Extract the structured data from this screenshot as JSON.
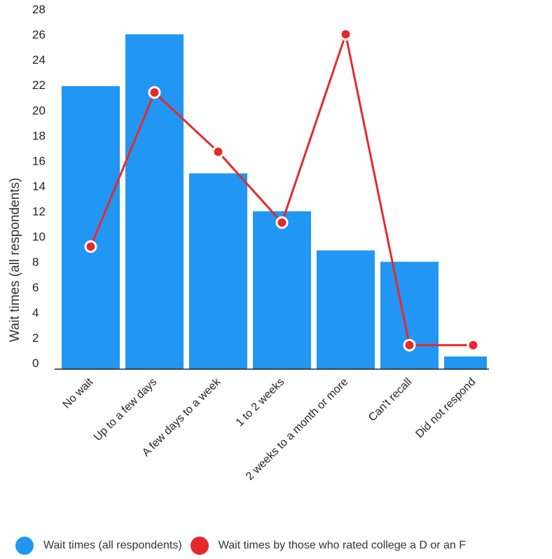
{
  "chart_data": {
    "type": "bar",
    "categories": [
      "No wait",
      "Up to a few days",
      "A few days to a week",
      "1 to 2 weeks",
      "2 weeks to a month or more",
      "Can't recall",
      "Did not respond"
    ],
    "series": [
      {
        "name": "Wait times (all respondents)",
        "type": "bar",
        "color": "#2196F3",
        "values": [
          22.4,
          26.5,
          15.5,
          12.5,
          9.4,
          8.5,
          1.0
        ]
      },
      {
        "name": "Wait times by those who rated college a D or an F",
        "type": "line",
        "color": "#E5292B",
        "values": [
          9.7,
          21.9,
          17.2,
          11.6,
          26.5,
          1.9,
          1.9
        ]
      }
    ],
    "ylabel": "Wait times (all respondents)",
    "yticks": [
      0,
      2,
      4,
      6,
      8,
      10,
      12,
      14,
      16,
      18,
      20,
      22,
      24,
      26,
      28
    ],
    "ylim": [
      0,
      28
    ],
    "grid": false,
    "legend_position": "bottom"
  }
}
